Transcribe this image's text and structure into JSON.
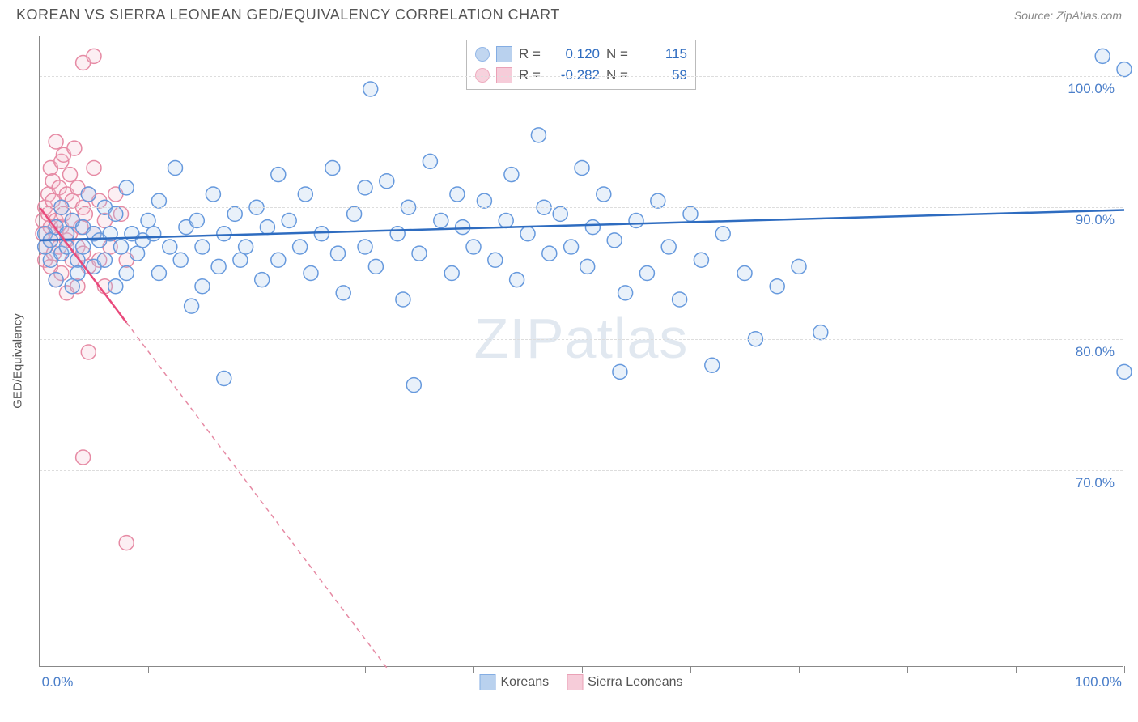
{
  "header": {
    "title": "KOREAN VS SIERRA LEONEAN GED/EQUIVALENCY CORRELATION CHART",
    "source": "Source: ZipAtlas.com"
  },
  "chart": {
    "type": "scatter",
    "ylabel": "GED/Equivalency",
    "watermark": {
      "part1": "ZIP",
      "part2": "atlas"
    },
    "background_color": "#ffffff",
    "border_color": "#888888",
    "grid_color": "#dddddd",
    "xlim": [
      0,
      100
    ],
    "ylim": [
      55,
      103
    ],
    "x_ticks": [
      0,
      10,
      20,
      30,
      40,
      50,
      60,
      70,
      80,
      90,
      100
    ],
    "x_tick_labels": {
      "0": "0.0%",
      "100": "100.0%"
    },
    "y_ticks": [
      70,
      80,
      90,
      100
    ],
    "y_tick_labels": {
      "70": "70.0%",
      "80": "80.0%",
      "90": "90.0%",
      "100": "100.0%"
    },
    "y_tick_label_color": "#4a7ec9",
    "x_tick_label_color": "#4a7ec9",
    "marker_radius": 9,
    "marker_stroke_width": 1.5,
    "marker_fill_opacity": 0.25,
    "series": [
      {
        "name": "Koreans",
        "color_stroke": "#6699dd",
        "color_fill": "#a8c6eb",
        "R": "0.120",
        "N": "115",
        "trend": {
          "x1": 0,
          "y1": 87.5,
          "x2": 100,
          "y2": 89.8,
          "color": "#2e6cc0",
          "width": 2.5,
          "dash": "none"
        },
        "points": [
          [
            0.5,
            87.0
          ],
          [
            0.5,
            88.0
          ],
          [
            1.0,
            86.0
          ],
          [
            1.0,
            87.5
          ],
          [
            1.5,
            88.5
          ],
          [
            1.5,
            84.5
          ],
          [
            2.0,
            90.0
          ],
          [
            2.0,
            86.5
          ],
          [
            2.5,
            87.0
          ],
          [
            2.5,
            88.0
          ],
          [
            3.0,
            84.0
          ],
          [
            3.0,
            89.0
          ],
          [
            3.5,
            86.0
          ],
          [
            3.5,
            85.0
          ],
          [
            4.0,
            88.5
          ],
          [
            4.0,
            87.0
          ],
          [
            4.5,
            91.0
          ],
          [
            5.0,
            88.0
          ],
          [
            5.0,
            85.5
          ],
          [
            5.5,
            87.5
          ],
          [
            6.0,
            90.0
          ],
          [
            6.0,
            86.0
          ],
          [
            6.5,
            88.0
          ],
          [
            7.0,
            84.0
          ],
          [
            7.0,
            89.5
          ],
          [
            7.5,
            87.0
          ],
          [
            8.0,
            85.0
          ],
          [
            8.0,
            91.5
          ],
          [
            8.5,
            88.0
          ],
          [
            9.0,
            86.5
          ],
          [
            9.5,
            87.5
          ],
          [
            10.0,
            89.0
          ],
          [
            10.5,
            88.0
          ],
          [
            11.0,
            90.5
          ],
          [
            11.0,
            85.0
          ],
          [
            12.0,
            87.0
          ],
          [
            12.5,
            93.0
          ],
          [
            13.0,
            86.0
          ],
          [
            13.5,
            88.5
          ],
          [
            14.0,
            82.5
          ],
          [
            14.5,
            89.0
          ],
          [
            15.0,
            87.0
          ],
          [
            15.0,
            84.0
          ],
          [
            16.0,
            91.0
          ],
          [
            16.5,
            85.5
          ],
          [
            17.0,
            88.0
          ],
          [
            17.0,
            77.0
          ],
          [
            18.0,
            89.5
          ],
          [
            18.5,
            86.0
          ],
          [
            19.0,
            87.0
          ],
          [
            20.0,
            90.0
          ],
          [
            20.5,
            84.5
          ],
          [
            21.0,
            88.5
          ],
          [
            22.0,
            92.5
          ],
          [
            22.0,
            86.0
          ],
          [
            23.0,
            89.0
          ],
          [
            24.0,
            87.0
          ],
          [
            24.5,
            91.0
          ],
          [
            25.0,
            85.0
          ],
          [
            26.0,
            88.0
          ],
          [
            27.0,
            93.0
          ],
          [
            27.5,
            86.5
          ],
          [
            28.0,
            83.5
          ],
          [
            29.0,
            89.5
          ],
          [
            30.0,
            91.5
          ],
          [
            30.0,
            87.0
          ],
          [
            30.5,
            99.0
          ],
          [
            31.0,
            85.5
          ],
          [
            32.0,
            92.0
          ],
          [
            33.0,
            88.0
          ],
          [
            33.5,
            83.0
          ],
          [
            34.0,
            90.0
          ],
          [
            34.5,
            76.5
          ],
          [
            35.0,
            86.5
          ],
          [
            36.0,
            93.5
          ],
          [
            37.0,
            89.0
          ],
          [
            38.0,
            85.0
          ],
          [
            38.5,
            91.0
          ],
          [
            39.0,
            88.5
          ],
          [
            40.0,
            87.0
          ],
          [
            41.0,
            90.5
          ],
          [
            42.0,
            86.0
          ],
          [
            43.0,
            89.0
          ],
          [
            43.5,
            92.5
          ],
          [
            44.0,
            84.5
          ],
          [
            45.0,
            88.0
          ],
          [
            46.0,
            95.5
          ],
          [
            46.5,
            90.0
          ],
          [
            47.0,
            86.5
          ],
          [
            48.0,
            89.5
          ],
          [
            49.0,
            87.0
          ],
          [
            50.0,
            93.0
          ],
          [
            50.5,
            85.5
          ],
          [
            51.0,
            88.5
          ],
          [
            52.0,
            91.0
          ],
          [
            53.0,
            87.5
          ],
          [
            53.5,
            77.5
          ],
          [
            54.0,
            83.5
          ],
          [
            55.0,
            89.0
          ],
          [
            56.0,
            85.0
          ],
          [
            57.0,
            90.5
          ],
          [
            58.0,
            87.0
          ],
          [
            59.0,
            83.0
          ],
          [
            60.0,
            89.5
          ],
          [
            61.0,
            86.0
          ],
          [
            62.0,
            78.0
          ],
          [
            63.0,
            88.0
          ],
          [
            65.0,
            85.0
          ],
          [
            66.0,
            80.0
          ],
          [
            68.0,
            84.0
          ],
          [
            70.0,
            85.5
          ],
          [
            72.0,
            80.5
          ],
          [
            98.0,
            101.5
          ],
          [
            100.0,
            77.5
          ],
          [
            100.0,
            100.5
          ]
        ]
      },
      {
        "name": "Sierra Leoneans",
        "color_stroke": "#e68aa4",
        "color_fill": "#f5c0d0",
        "R": "-0.282",
        "N": "59",
        "trend": {
          "x1": 0,
          "y1": 90.0,
          "x2": 32,
          "y2": 55.0,
          "color": "#e94a7c",
          "width": 2.5,
          "dash": "none",
          "extend_dash_to_x": 32
        },
        "points": [
          [
            0.3,
            88.0
          ],
          [
            0.3,
            89.0
          ],
          [
            0.5,
            87.0
          ],
          [
            0.5,
            90.0
          ],
          [
            0.5,
            86.0
          ],
          [
            0.8,
            91.0
          ],
          [
            0.8,
            89.5
          ],
          [
            1.0,
            88.5
          ],
          [
            1.0,
            85.5
          ],
          [
            1.0,
            93.0
          ],
          [
            1.0,
            87.5
          ],
          [
            1.2,
            90.5
          ],
          [
            1.2,
            92.0
          ],
          [
            1.3,
            86.5
          ],
          [
            1.5,
            89.0
          ],
          [
            1.5,
            95.0
          ],
          [
            1.5,
            88.0
          ],
          [
            1.5,
            84.5
          ],
          [
            1.8,
            91.5
          ],
          [
            1.8,
            87.0
          ],
          [
            2.0,
            93.5
          ],
          [
            2.0,
            90.0
          ],
          [
            2.0,
            88.5
          ],
          [
            2.0,
            85.0
          ],
          [
            2.2,
            89.5
          ],
          [
            2.2,
            94.0
          ],
          [
            2.5,
            87.5
          ],
          [
            2.5,
            91.0
          ],
          [
            2.5,
            83.5
          ],
          [
            2.8,
            92.5
          ],
          [
            2.8,
            88.0
          ],
          [
            3.0,
            90.5
          ],
          [
            3.0,
            86.0
          ],
          [
            3.0,
            89.0
          ],
          [
            3.2,
            94.5
          ],
          [
            3.5,
            87.0
          ],
          [
            3.5,
            91.5
          ],
          [
            3.5,
            84.0
          ],
          [
            3.8,
            88.5
          ],
          [
            4.0,
            90.0
          ],
          [
            4.0,
            86.5
          ],
          [
            4.0,
            101.0
          ],
          [
            4.2,
            89.5
          ],
          [
            4.5,
            85.5
          ],
          [
            4.5,
            91.0
          ],
          [
            4.5,
            79.0
          ],
          [
            5.0,
            88.0
          ],
          [
            5.0,
            93.0
          ],
          [
            5.0,
            101.5
          ],
          [
            5.5,
            86.0
          ],
          [
            5.5,
            90.5
          ],
          [
            6.0,
            89.0
          ],
          [
            6.0,
            84.0
          ],
          [
            6.5,
            87.0
          ],
          [
            7.0,
            91.0
          ],
          [
            7.5,
            89.5
          ],
          [
            8.0,
            86.0
          ],
          [
            8.0,
            64.5
          ],
          [
            4.0,
            71.0
          ]
        ]
      }
    ]
  },
  "legend_top": {
    "R_label": "R =",
    "N_label": "N ="
  },
  "legend_bottom": {
    "items": [
      "Koreans",
      "Sierra Leoneans"
    ]
  }
}
